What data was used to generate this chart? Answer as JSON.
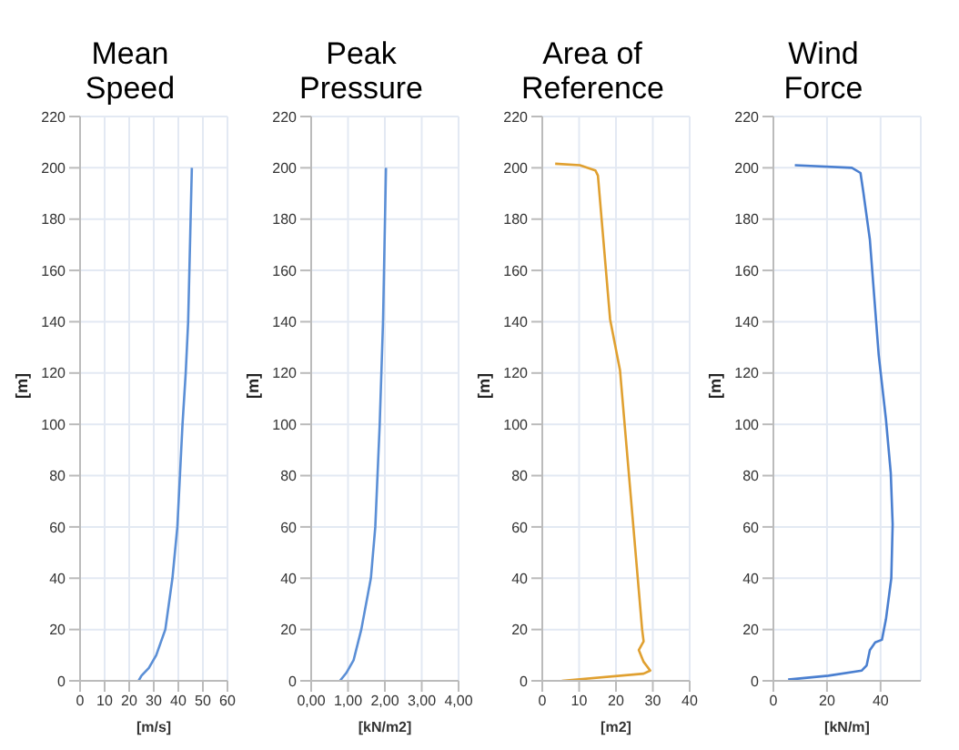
{
  "chart_data": [
    {
      "type": "line",
      "title": "Mean Speed",
      "xlabel": "[m/s]",
      "ylabel": "[m]",
      "xlim": [
        0,
        60
      ],
      "xticks": [
        0,
        10,
        20,
        30,
        40,
        50,
        60
      ],
      "ylim": [
        0,
        220
      ],
      "yticks": [
        0,
        20,
        40,
        60,
        80,
        100,
        120,
        140,
        160,
        180,
        200,
        220
      ],
      "grid": true,
      "marker": "none",
      "series": [
        {
          "color": "#5b8fd6",
          "x": [
            23.8,
            25,
            28,
            31,
            34.7,
            37.6,
            39.6,
            41.7,
            43,
            44,
            44.5,
            45,
            45.5
          ],
          "values": [
            0,
            2,
            5,
            10,
            20,
            40,
            60,
            100,
            120,
            140,
            160,
            180,
            200
          ]
        }
      ]
    },
    {
      "type": "line",
      "title": "Peak Pressure",
      "xlabel": "[kN/m2]",
      "ylabel": "[m]",
      "xlim": [
        0,
        4
      ],
      "xticks": [
        {
          "value": 0,
          "label": "0,00"
        },
        {
          "value": 1,
          "label": "1,00"
        },
        {
          "value": 2,
          "label": "2,00"
        },
        {
          "value": 3,
          "label": "3,00"
        },
        {
          "value": 4,
          "label": "4,00"
        }
      ],
      "ylim": [
        0,
        220
      ],
      "yticks": [
        0,
        20,
        40,
        60,
        80,
        100,
        120,
        140,
        160,
        180,
        200,
        220
      ],
      "grid": true,
      "marker": "none",
      "series": [
        {
          "color": "#5b8fd6",
          "x": [
            0.78,
            0.95,
            1.15,
            1.36,
            1.62,
            1.74,
            1.86,
            1.95,
            2.03
          ],
          "values": [
            0,
            3,
            8,
            20,
            40,
            60,
            100,
            140,
            200
          ]
        }
      ]
    },
    {
      "type": "line",
      "title": "Area of Reference",
      "xlabel": "[m2]",
      "ylabel": "[m]",
      "xlim": [
        0,
        40
      ],
      "xticks": [
        0,
        10,
        20,
        30,
        40
      ],
      "ylim": [
        0,
        220
      ],
      "yticks": [
        0,
        20,
        40,
        60,
        80,
        100,
        120,
        140,
        160,
        180,
        200,
        220
      ],
      "grid": true,
      "marker": "none",
      "series": [
        {
          "color": "#e0a030",
          "x": [
            5.3,
            27.5,
            29.3,
            27.5,
            26.2,
            27.5,
            27.1,
            21.1,
            18.4,
            15.1,
            14.4,
            10.2,
            3.5
          ],
          "values": [
            0,
            2.8,
            4,
            7.4,
            12,
            15.4,
            20,
            121,
            141,
            197,
            199,
            201,
            201.6
          ]
        }
      ]
    },
    {
      "type": "line",
      "title": "Wind Force",
      "xlabel": "[kN/m]",
      "ylabel": "[m]",
      "xlim": [
        0,
        55
      ],
      "xticks": [
        0,
        20,
        40
      ],
      "ylim": [
        0,
        220
      ],
      "yticks": [
        0,
        20,
        40,
        60,
        80,
        100,
        120,
        140,
        160,
        180,
        200,
        220
      ],
      "grid": true,
      "marker": "none",
      "series": [
        {
          "color": "#4a7fd0",
          "x": [
            5.5,
            20.5,
            33,
            34.8,
            36,
            38,
            40.5,
            42,
            44,
            44.5,
            43.8,
            42,
            39.3,
            36,
            33.5,
            32.5,
            29.3,
            8
          ],
          "values": [
            0.5,
            2,
            4,
            6,
            12,
            15,
            16,
            24,
            40,
            61,
            81,
            102,
            127,
            172,
            191,
            198,
            200,
            201
          ]
        }
      ]
    }
  ]
}
